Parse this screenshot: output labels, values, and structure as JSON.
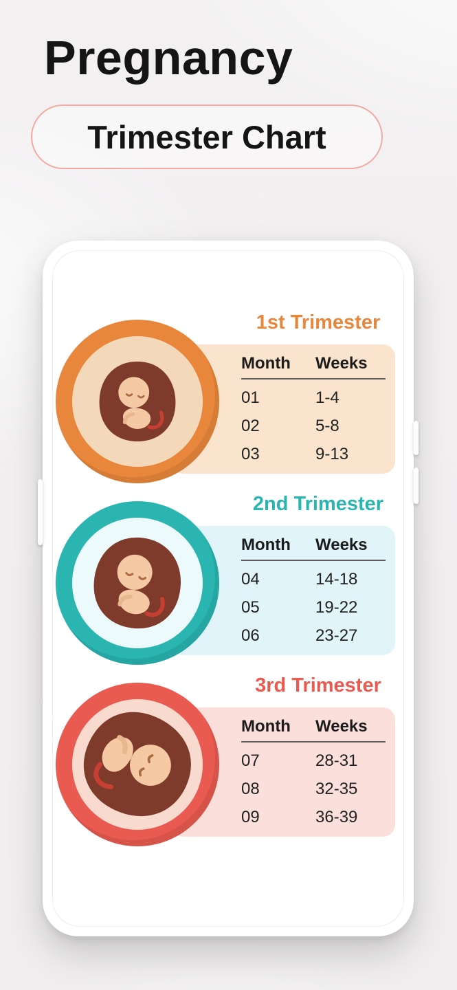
{
  "page": {
    "title": "Pregnancy",
    "subtitle": "Trimester Chart",
    "pill_border_color": "#F4A9A1"
  },
  "table_headers": {
    "month": "Month",
    "weeks": "Weeks"
  },
  "trimesters": [
    {
      "label": "1st Trimester",
      "accent": "#E8873B",
      "ring_inner": "#F3D8BA",
      "panel_bg": "#FAE4CD",
      "rows": [
        {
          "month": "01",
          "weeks": "1-4"
        },
        {
          "month": "02",
          "weeks": "5-8"
        },
        {
          "month": "03",
          "weeks": "9-13"
        }
      ]
    },
    {
      "label": "2nd Trimester",
      "accent": "#2AB5B0",
      "ring_inner": "#EDFAFB",
      "panel_bg": "#E0F4FA",
      "rows": [
        {
          "month": "04",
          "weeks": "14-18"
        },
        {
          "month": "05",
          "weeks": "19-22"
        },
        {
          "month": "06",
          "weeks": "23-27"
        }
      ]
    },
    {
      "label": "3rd Trimester",
      "accent": "#E95B51",
      "ring_inner": "#F8DACF",
      "panel_bg": "#FBDFDA",
      "rows": [
        {
          "month": "07",
          "weeks": "28-31"
        },
        {
          "month": "08",
          "weeks": "32-35"
        },
        {
          "month": "09",
          "weeks": "36-39"
        }
      ]
    }
  ],
  "chart_data": [
    {
      "type": "table",
      "title": "1st Trimester",
      "columns": [
        "Month",
        "Weeks"
      ],
      "rows": [
        [
          "01",
          "1-4"
        ],
        [
          "02",
          "5-8"
        ],
        [
          "03",
          "9-13"
        ]
      ]
    },
    {
      "type": "table",
      "title": "2nd Trimester",
      "columns": [
        "Month",
        "Weeks"
      ],
      "rows": [
        [
          "04",
          "14-18"
        ],
        [
          "05",
          "19-22"
        ],
        [
          "06",
          "23-27"
        ]
      ]
    },
    {
      "type": "table",
      "title": "3rd Trimester",
      "columns": [
        "Month",
        "Weeks"
      ],
      "rows": [
        [
          "07",
          "28-31"
        ],
        [
          "08",
          "32-35"
        ],
        [
          "09",
          "36-39"
        ]
      ]
    }
  ]
}
